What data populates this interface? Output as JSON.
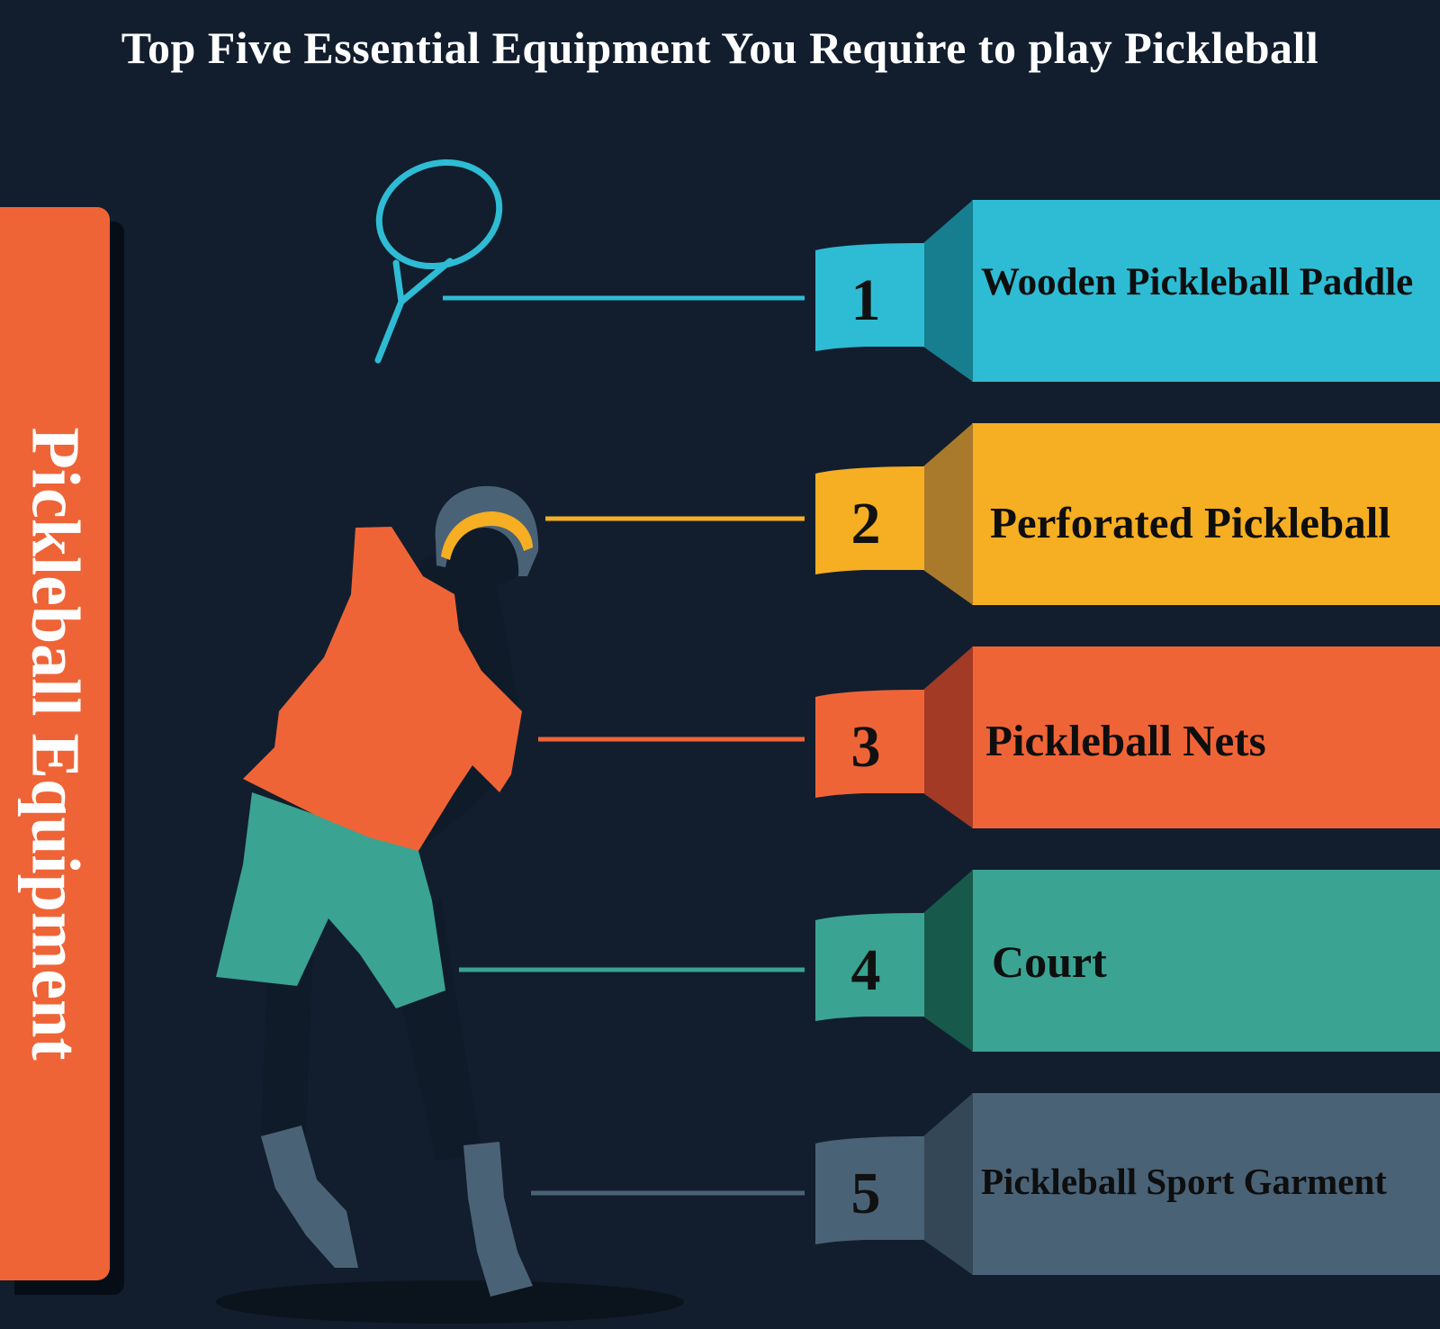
{
  "title": "Top Five Essential Equipment You Require to play Pickleball",
  "side_label": "Pickleball Equipment",
  "colors": {
    "background": "#121e2d",
    "banner": "#ef6437",
    "cyan": "#2ebcd4",
    "yellow": "#f6ae22",
    "orange": "#ef6437",
    "teal": "#3aa392",
    "slate": "#4a6276"
  },
  "items": [
    {
      "number": "1",
      "label": "Wooden Pickleball Paddle",
      "color": "#2ebcd4",
      "shade": "#177e8f"
    },
    {
      "number": "2",
      "label": "Perforated Pickleball",
      "color": "#f6ae22",
      "shade": "#a97a2c"
    },
    {
      "number": "3",
      "label": "Pickleball Nets",
      "color": "#ef6437",
      "shade": "#a33a26"
    },
    {
      "number": "4",
      "label": "Court",
      "color": "#3aa392",
      "shade": "#175a4c"
    },
    {
      "number": "5",
      "label": "Pickleball Sport Garment",
      "color": "#4a6276",
      "shade": "#344756"
    }
  ],
  "icons": [
    "racket-icon",
    "player-figure-icon"
  ]
}
